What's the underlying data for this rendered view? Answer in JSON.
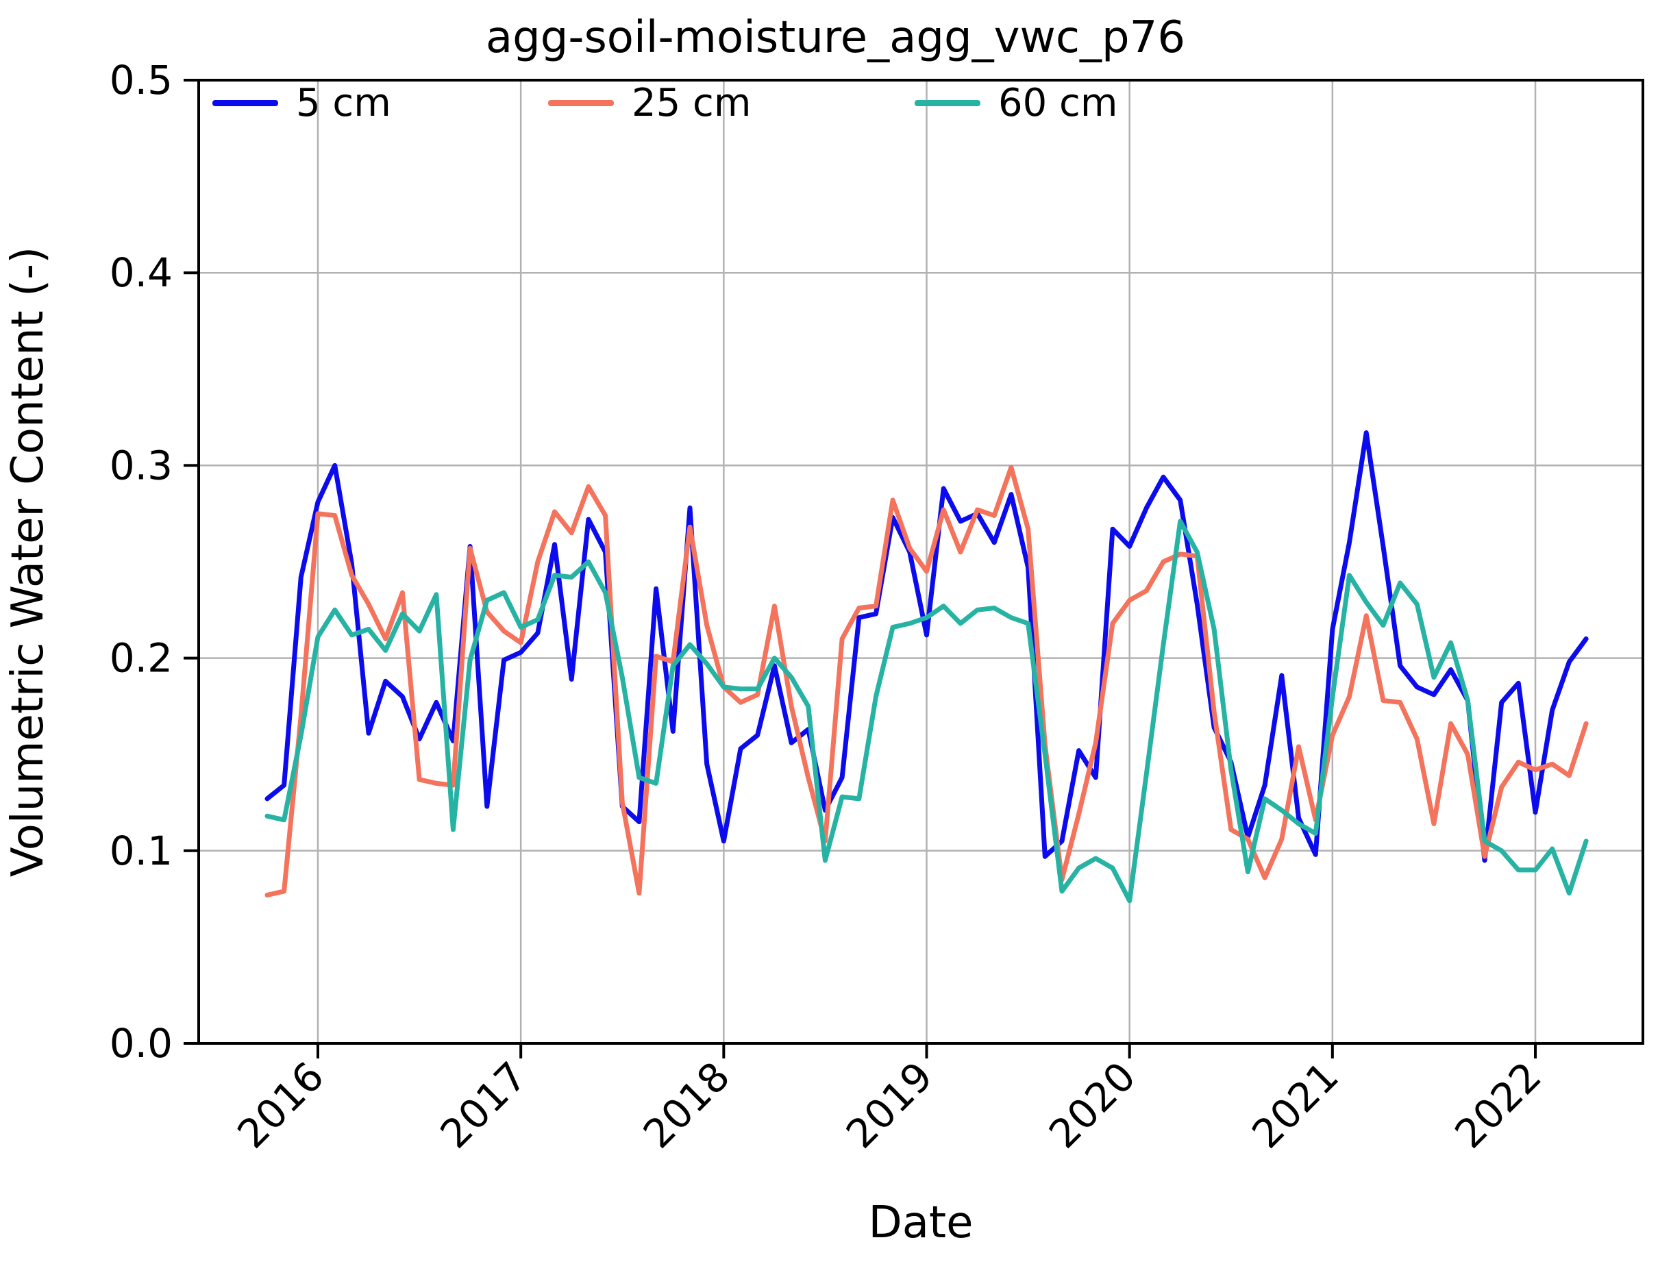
{
  "title": "agg-soil-moisture_agg_vwc_p76",
  "chart_data": {
    "type": "line",
    "title": "agg-soil-moisture_agg_vwc_p76",
    "xlabel": "Date",
    "ylabel": "Volumetric Water Content (-)",
    "ylim": [
      0.0,
      0.5
    ],
    "grid": true,
    "legend_position": "upper-left-inside, horizontal row",
    "yticks": [
      0.0,
      0.1,
      0.2,
      0.3,
      0.4,
      0.5
    ],
    "ytick_labels": [
      "0.0",
      "0.1",
      "0.2",
      "0.3",
      "0.4",
      "0.5"
    ],
    "xticks": [
      2016,
      2017,
      2018,
      2019,
      2020,
      2021,
      2022
    ],
    "xtick_labels": [
      "2016",
      "2017",
      "2018",
      "2019",
      "2020",
      "2021",
      "2022"
    ],
    "months": [
      "2015-10",
      "2015-11",
      "2015-12",
      "2016-01",
      "2016-02",
      "2016-03",
      "2016-04",
      "2016-05",
      "2016-06",
      "2016-07",
      "2016-08",
      "2016-09",
      "2016-10",
      "2016-11",
      "2016-12",
      "2017-01",
      "2017-02",
      "2017-03",
      "2017-04",
      "2017-05",
      "2017-06",
      "2017-07",
      "2017-08",
      "2017-09",
      "2017-10",
      "2017-11",
      "2017-12",
      "2018-01",
      "2018-02",
      "2018-03",
      "2018-04",
      "2018-05",
      "2018-06",
      "2018-07",
      "2018-08",
      "2018-09",
      "2018-10",
      "2018-11",
      "2018-12",
      "2019-01",
      "2019-02",
      "2019-03",
      "2019-04",
      "2019-05",
      "2019-06",
      "2019-07",
      "2019-08",
      "2019-09",
      "2019-10",
      "2019-11",
      "2019-12",
      "2020-01",
      "2020-02",
      "2020-03",
      "2020-04",
      "2020-05",
      "2020-06",
      "2020-07",
      "2020-08",
      "2020-09",
      "2020-10",
      "2020-11",
      "2020-12",
      "2021-01",
      "2021-02",
      "2021-03",
      "2021-04",
      "2021-05",
      "2021-06",
      "2021-07",
      "2021-08",
      "2021-09",
      "2021-10",
      "2021-11",
      "2021-12",
      "2022-01",
      "2022-02",
      "2022-03",
      "2022-04"
    ],
    "series": [
      {
        "name": "5 cm",
        "color": "#0b0bee",
        "values": [
          0.127,
          0.134,
          0.242,
          0.281,
          0.3,
          0.249,
          0.161,
          0.188,
          0.18,
          0.158,
          0.177,
          0.157,
          0.258,
          0.123,
          0.199,
          0.203,
          0.213,
          0.259,
          0.189,
          0.272,
          0.255,
          0.123,
          0.115,
          0.236,
          0.162,
          0.278,
          0.145,
          0.105,
          0.153,
          0.16,
          0.196,
          0.156,
          0.163,
          0.121,
          0.138,
          0.221,
          0.223,
          0.273,
          0.255,
          0.212,
          0.288,
          0.271,
          0.275,
          0.26,
          0.285,
          0.247,
          0.097,
          0.105,
          0.152,
          0.138,
          0.267,
          0.258,
          0.278,
          0.294,
          0.282,
          0.228,
          0.164,
          0.146,
          0.107,
          0.134,
          0.191,
          0.117,
          0.098,
          0.215,
          0.26,
          0.317,
          0.258,
          0.196,
          0.185,
          0.181,
          0.194,
          0.178,
          0.095,
          0.177,
          0.187,
          0.12,
          0.173,
          0.198,
          0.21
        ]
      },
      {
        "name": "25 cm",
        "color": "#f4735c",
        "values": [
          0.077,
          0.079,
          0.17,
          0.275,
          0.274,
          0.243,
          0.228,
          0.21,
          0.234,
          0.137,
          0.135,
          0.134,
          0.257,
          0.224,
          0.214,
          0.208,
          0.25,
          0.276,
          0.265,
          0.289,
          0.274,
          0.125,
          0.078,
          0.201,
          0.198,
          0.268,
          0.217,
          0.185,
          0.177,
          0.181,
          0.227,
          0.175,
          0.138,
          0.105,
          0.21,
          0.226,
          0.227,
          0.282,
          0.257,
          0.245,
          0.277,
          0.255,
          0.277,
          0.274,
          0.299,
          0.267,
          0.155,
          0.085,
          0.119,
          0.156,
          0.218,
          0.23,
          0.235,
          0.25,
          0.254,
          0.253,
          0.172,
          0.111,
          0.106,
          0.086,
          0.106,
          0.154,
          0.116,
          0.16,
          0.18,
          0.222,
          0.178,
          0.177,
          0.158,
          0.114,
          0.166,
          0.15,
          0.097,
          0.133,
          0.146,
          0.142,
          0.145,
          0.139,
          0.166
        ]
      },
      {
        "name": "60 cm",
        "color": "#27b3a4",
        "values": [
          0.118,
          0.116,
          0.16,
          0.211,
          0.225,
          0.212,
          0.215,
          0.204,
          0.223,
          0.214,
          0.233,
          0.111,
          0.199,
          0.23,
          0.234,
          0.216,
          0.22,
          0.243,
          0.242,
          0.25,
          0.234,
          0.19,
          0.138,
          0.135,
          0.196,
          0.207,
          0.197,
          0.185,
          0.184,
          0.184,
          0.2,
          0.19,
          0.175,
          0.095,
          0.128,
          0.127,
          0.18,
          0.216,
          0.218,
          0.221,
          0.227,
          0.218,
          0.225,
          0.226,
          0.221,
          0.218,
          0.15,
          0.079,
          0.091,
          0.096,
          0.091,
          0.074,
          0.14,
          0.207,
          0.271,
          0.255,
          0.215,
          0.142,
          0.089,
          0.127,
          0.121,
          0.114,
          0.109,
          0.18,
          0.243,
          0.229,
          0.217,
          0.239,
          0.228,
          0.19,
          0.208,
          0.178,
          0.105,
          0.1,
          0.09,
          0.09,
          0.101,
          0.078,
          0.105
        ]
      }
    ],
    "style": {
      "line_width": 7,
      "grid_color": "#b2b2b2",
      "spine_color": "#000000",
      "background": "#ffffff"
    }
  }
}
